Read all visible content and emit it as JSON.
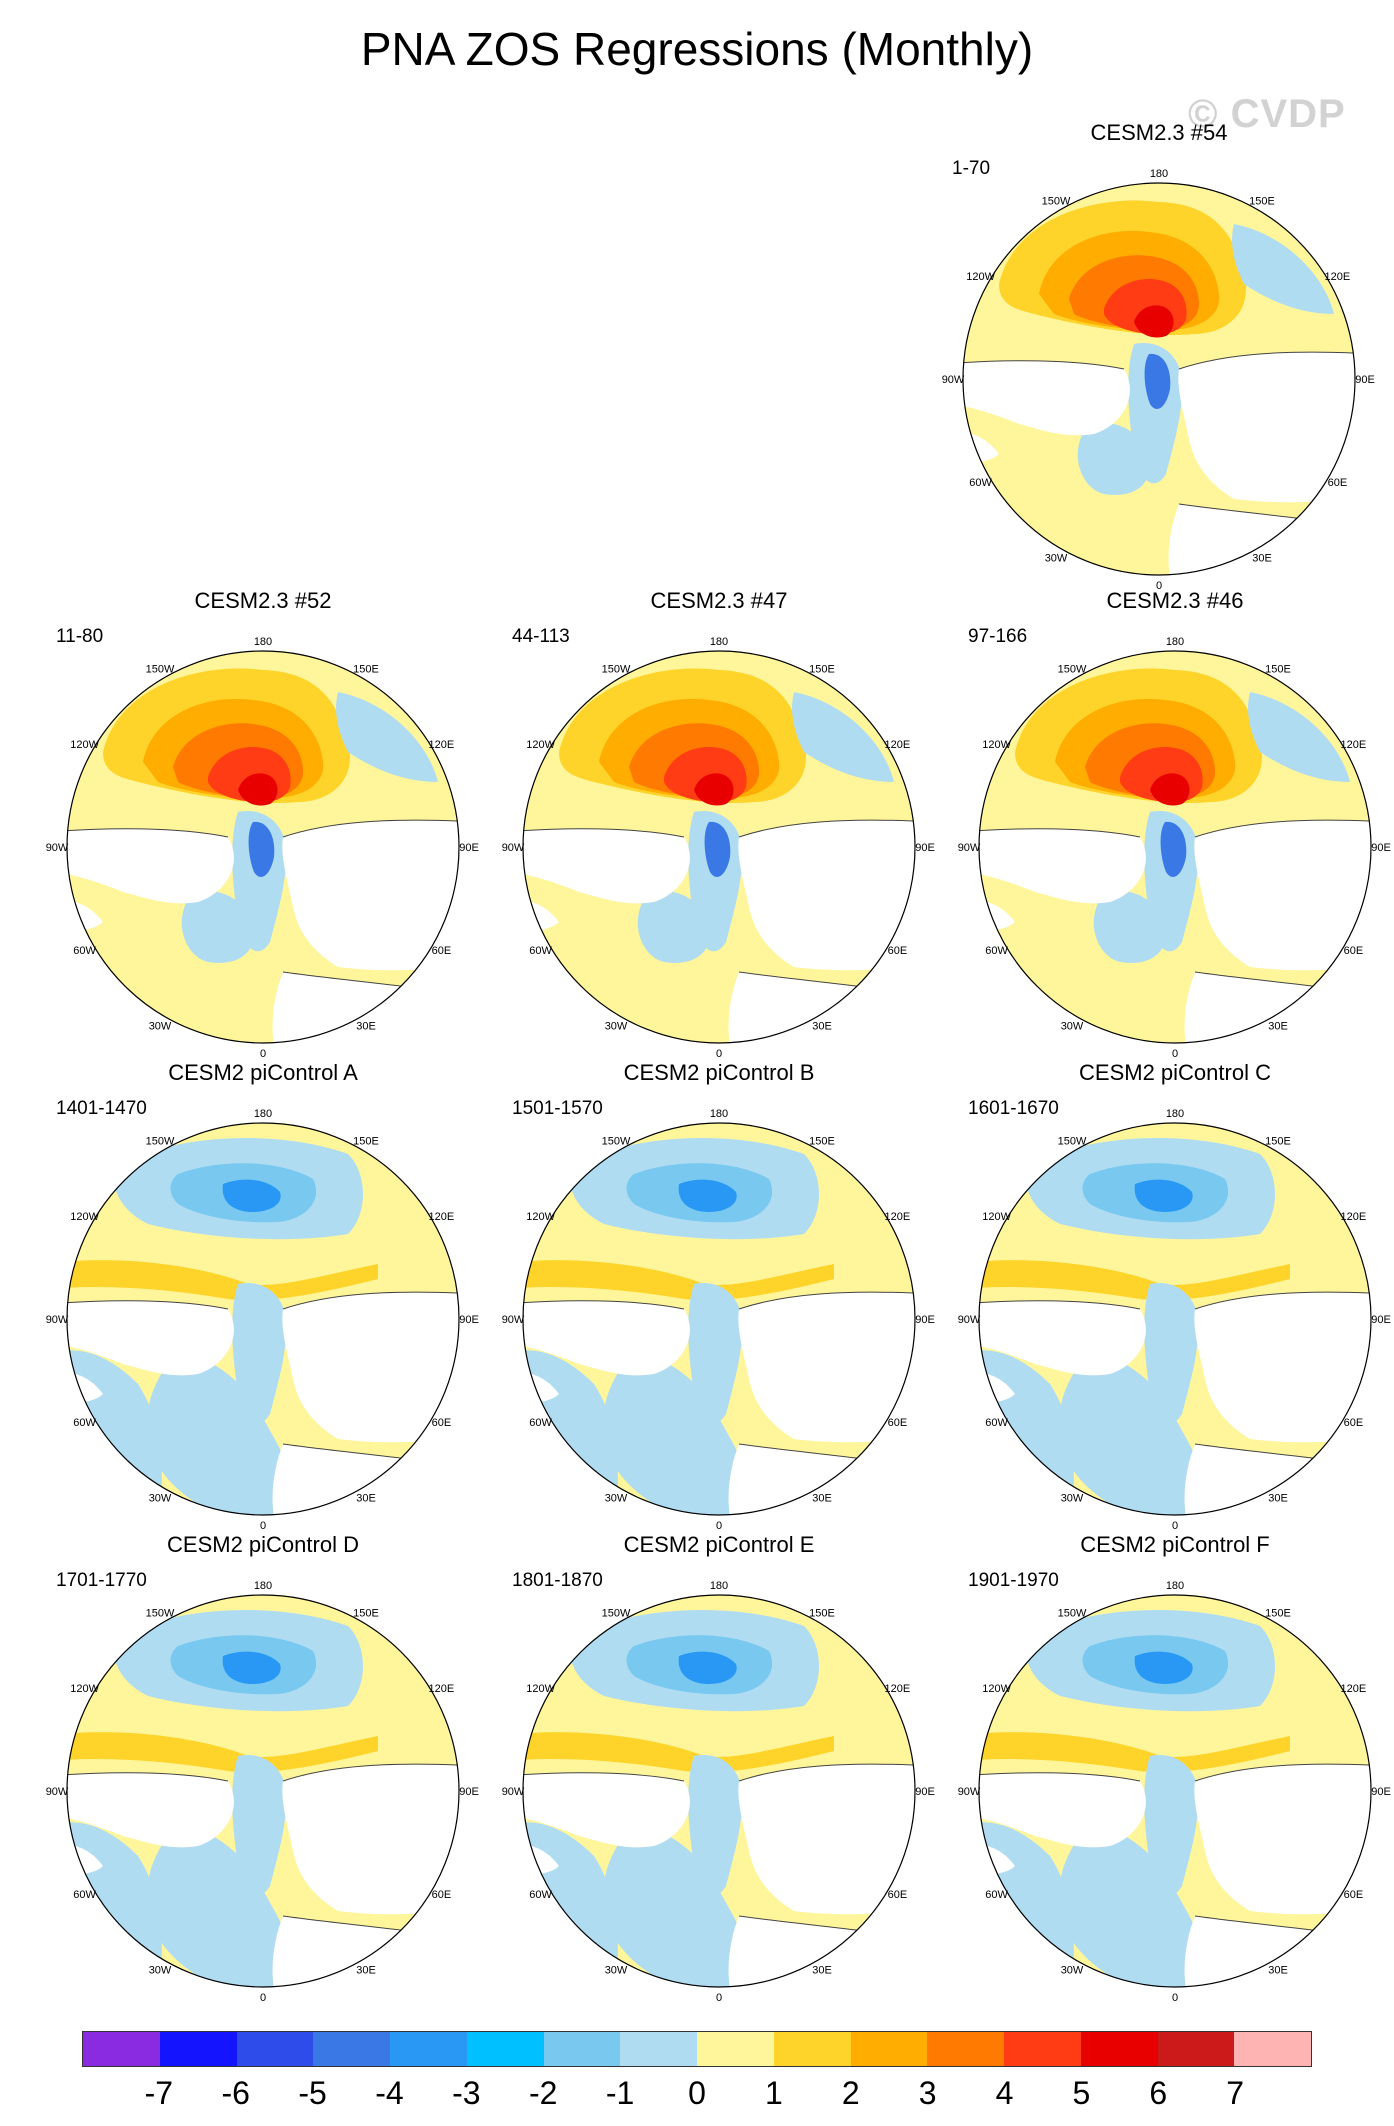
{
  "title": "PNA ZOS Regressions (Monthly)",
  "watermark": "© CVDP",
  "lon_labels": {
    "l180": "180",
    "l150e": "150E",
    "l120e": "120E",
    "l90e": "90E",
    "l60e": "60E",
    "l30e": "30E",
    "l0": "0",
    "l30w": "30W",
    "l60w": "60W",
    "l90w": "90W",
    "l120w": "120W",
    "l150w": "150W"
  },
  "panels": [
    {
      "title": "CESM2.3 #54",
      "range": "1-70",
      "pattern": "model"
    },
    {
      "title": "CESM2.3 #52",
      "range": "11-80",
      "pattern": "model"
    },
    {
      "title": "CESM2.3 #47",
      "range": "44-113",
      "pattern": "model"
    },
    {
      "title": "CESM2.3 #46",
      "range": "97-166",
      "pattern": "model"
    },
    {
      "title": "CESM2 piControl A",
      "range": "1401-1470",
      "pattern": "control"
    },
    {
      "title": "CESM2 piControl B",
      "range": "1501-1570",
      "pattern": "control"
    },
    {
      "title": "CESM2 piControl C",
      "range": "1601-1670",
      "pattern": "control"
    },
    {
      "title": "CESM2 piControl D",
      "range": "1701-1770",
      "pattern": "control"
    },
    {
      "title": "CESM2 piControl E",
      "range": "1801-1870",
      "pattern": "control"
    },
    {
      "title": "CESM2 piControl F",
      "range": "1901-1970",
      "pattern": "control"
    }
  ],
  "colorbar": {
    "colors": [
      "#8a2be2",
      "#1414ff",
      "#2e4cea",
      "#3a78e6",
      "#2898f4",
      "#00c0ff",
      "#78c8f0",
      "#b0dcf2",
      "#fff59a",
      "#ffd42a",
      "#ffad00",
      "#ff7a00",
      "#ff3c14",
      "#e80000",
      "#cc1a1a",
      "#ffb4b4"
    ],
    "labels": [
      "-7",
      "-6",
      "-5",
      "-4",
      "-3",
      "-2",
      "-1",
      "0",
      "1",
      "2",
      "3",
      "4",
      "5",
      "6",
      "7"
    ]
  },
  "palette": {
    "ocean_pos": "#fff59a",
    "ocean_neg": "#b0dcf2",
    "mid_neg": "#78c8f0",
    "strong_neg": "#3a78e6",
    "p2": "#ffd42a",
    "p3": "#ffad00",
    "p4": "#ff7a00",
    "p5": "#ff3c14",
    "p6": "#e80000",
    "land": "#ffffff"
  }
}
